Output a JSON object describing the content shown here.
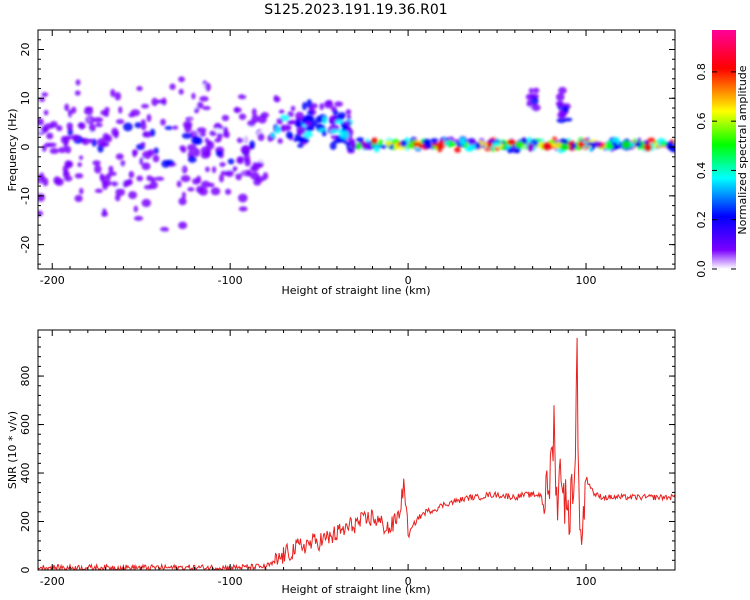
{
  "figure": {
    "title": "S125.2023.191.19.36.R01"
  },
  "chart_data": [
    {
      "type": "heatmap",
      "xlabel": "Height of straight line (km)",
      "ylabel": "Frequency (Hz)",
      "xlim": [
        -208,
        150
      ],
      "ylim": [
        -25,
        24
      ],
      "xticks": [
        -200,
        -100,
        0,
        100
      ],
      "yticks": [
        -20,
        -10,
        0,
        10,
        20
      ],
      "colorbar": {
        "label": "Normalized spectral amplitude",
        "range": [
          0,
          0.97
        ],
        "ticks": [
          0.0,
          0.2,
          0.4,
          0.6,
          0.8
        ],
        "colors": [
          "#ffffff",
          "#7a00ff",
          "#0000ff",
          "#00ffff",
          "#00ff00",
          "#ffff00",
          "#ff0000",
          "#ff0099"
        ]
      },
      "features": [
        {
          "x_range": [
            -208,
            -78
          ],
          "freq_center": 0,
          "freq_spread": 20,
          "amplitude": 0.2
        },
        {
          "x_range": [
            -78,
            -32
          ],
          "freq_center": 4,
          "freq_spread": 8,
          "amplitude": 0.35
        },
        {
          "x_range": [
            -32,
            150
          ],
          "freq_center": 0.5,
          "freq_spread": 1.2,
          "amplitude": 0.7
        },
        {
          "x_range": [
            68,
            72
          ],
          "freq_center": 10,
          "freq_spread": 4,
          "amplitude": 0.2
        },
        {
          "x_range": [
            85,
            90
          ],
          "freq_center": 8,
          "freq_spread": 6,
          "amplitude": 0.25
        }
      ]
    },
    {
      "type": "line",
      "xlabel": "Height of straight line (km)",
      "ylabel": "SNR (10 * v/v)",
      "xlim": [
        -208,
        150
      ],
      "ylim": [
        0,
        990
      ],
      "xticks": [
        -200,
        -100,
        0,
        100
      ],
      "yticks": [
        0,
        200,
        400,
        600,
        800
      ],
      "color": "#e8211f",
      "series": [
        {
          "name": "",
          "x": [
            -208,
            -180,
            -150,
            -120,
            -100,
            -90,
            -80,
            -75,
            -70,
            -65,
            -60,
            -55,
            -50,
            -45,
            -40,
            -35,
            -30,
            -25,
            -20,
            -15,
            -10,
            -5,
            -3,
            -2,
            0,
            5,
            10,
            15,
            20,
            25,
            30,
            35,
            40,
            45,
            50,
            55,
            60,
            65,
            70,
            75,
            78,
            80,
            82,
            84,
            86,
            88,
            90,
            92,
            94,
            95,
            96,
            98,
            100,
            105,
            110,
            120,
            130,
            140,
            150
          ],
          "y": [
            10,
            10,
            10,
            10,
            10,
            12,
            15,
            30,
            60,
            80,
            100,
            110,
            120,
            130,
            150,
            170,
            190,
            200,
            220,
            190,
            170,
            230,
            330,
            350,
            140,
            210,
            240,
            250,
            270,
            280,
            290,
            300,
            300,
            310,
            310,
            305,
            300,
            310,
            310,
            310,
            300,
            400,
            600,
            250,
            450,
            300,
            200,
            350,
            400,
            990,
            250,
            150,
            380,
            310,
            300,
            300,
            300,
            300,
            300
          ]
        }
      ]
    }
  ]
}
